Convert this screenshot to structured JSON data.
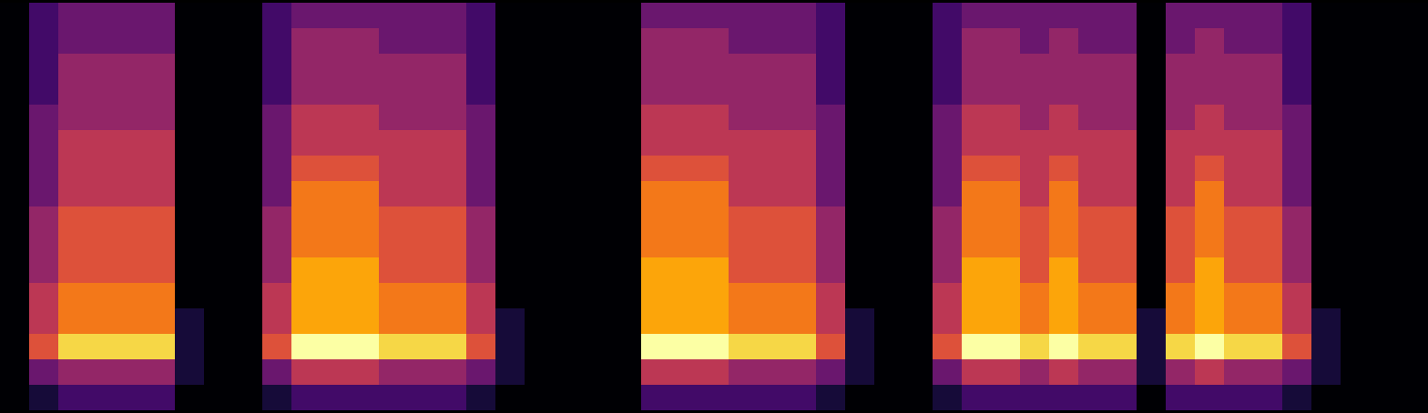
{
  "chart_data": {
    "type": "heatmap",
    "color": "inferno",
    "tick_labels": false,
    "x": [
      0,
      1,
      2,
      3,
      4,
      5,
      6,
      7,
      8,
      9,
      10,
      11,
      12,
      13,
      14,
      15,
      16,
      17,
      18,
      19,
      20,
      21,
      22,
      23,
      24,
      25,
      26,
      27,
      28,
      29,
      30,
      31,
      32,
      33,
      34,
      35,
      36,
      37,
      38,
      39,
      40,
      41,
      42,
      43,
      44,
      45,
      46,
      47,
      48
    ],
    "y": [
      15,
      14,
      13,
      12,
      11,
      10,
      9,
      8,
      7,
      6,
      5,
      4,
      3,
      2,
      1,
      0
    ],
    "z": [
      [
        0,
        0,
        0,
        0,
        0,
        0,
        0,
        0,
        0,
        0,
        0,
        0,
        0,
        0,
        0,
        0
      ],
      [
        2,
        2,
        2,
        2,
        3,
        3,
        3,
        3,
        4,
        4,
        4,
        5,
        5,
        6,
        3,
        1
      ],
      [
        3,
        3,
        4,
        4,
        4,
        5,
        5,
        5,
        6,
        6,
        6,
        7,
        7,
        9,
        4,
        2
      ],
      [
        3,
        3,
        4,
        4,
        4,
        5,
        5,
        5,
        6,
        6,
        6,
        7,
        7,
        9,
        4,
        2
      ],
      [
        3,
        3,
        4,
        4,
        4,
        5,
        5,
        5,
        6,
        6,
        6,
        7,
        7,
        9,
        4,
        2
      ],
      [
        3,
        3,
        4,
        4,
        4,
        5,
        5,
        5,
        6,
        6,
        6,
        7,
        7,
        9,
        4,
        2
      ],
      [
        0,
        0,
        0,
        0,
        0,
        0,
        0,
        0,
        0,
        0,
        0,
        0,
        1,
        1,
        1,
        0
      ],
      [
        0,
        0,
        0,
        0,
        0,
        0,
        0,
        0,
        0,
        0,
        0,
        0,
        0,
        0,
        0,
        0
      ],
      [
        0,
        0,
        0,
        0,
        0,
        0,
        0,
        0,
        0,
        0,
        0,
        0,
        0,
        0,
        0,
        0
      ],
      [
        2,
        2,
        2,
        2,
        3,
        3,
        3,
        3,
        4,
        4,
        4,
        5,
        5,
        6,
        3,
        1
      ],
      [
        3,
        4,
        4,
        4,
        5,
        5,
        6,
        7,
        7,
        7,
        8,
        8,
        8,
        10,
        5,
        2
      ],
      [
        3,
        4,
        4,
        4,
        5,
        5,
        6,
        7,
        7,
        7,
        8,
        8,
        8,
        10,
        5,
        2
      ],
      [
        3,
        4,
        4,
        4,
        5,
        5,
        6,
        7,
        7,
        7,
        8,
        8,
        8,
        10,
        5,
        2
      ],
      [
        3,
        3,
        4,
        4,
        4,
        5,
        5,
        5,
        6,
        6,
        6,
        7,
        7,
        9,
        4,
        2
      ],
      [
        3,
        3,
        4,
        4,
        4,
        5,
        5,
        5,
        6,
        6,
        6,
        7,
        7,
        9,
        4,
        2
      ],
      [
        3,
        3,
        4,
        4,
        4,
        5,
        5,
        5,
        6,
        6,
        6,
        7,
        7,
        9,
        4,
        2
      ],
      [
        2,
        2,
        2,
        2,
        3,
        3,
        3,
        3,
        4,
        4,
        4,
        5,
        5,
        6,
        3,
        1
      ],
      [
        0,
        0,
        0,
        0,
        0,
        0,
        0,
        0,
        0,
        0,
        0,
        0,
        1,
        1,
        1,
        0
      ],
      [
        0,
        0,
        0,
        0,
        0,
        0,
        0,
        0,
        0,
        0,
        0,
        0,
        0,
        0,
        0,
        0
      ],
      [
        0,
        0,
        0,
        0,
        0,
        0,
        0,
        0,
        0,
        0,
        0,
        0,
        0,
        0,
        0,
        0
      ],
      [
        0,
        0,
        0,
        0,
        0,
        0,
        0,
        0,
        0,
        0,
        0,
        0,
        0,
        0,
        0,
        0
      ],
      [
        0,
        0,
        0,
        0,
        0,
        0,
        0,
        0,
        0,
        0,
        0,
        0,
        0,
        0,
        0,
        0
      ],
      [
        3,
        4,
        4,
        4,
        5,
        5,
        6,
        7,
        7,
        7,
        8,
        8,
        8,
        10,
        5,
        2
      ],
      [
        3,
        4,
        4,
        4,
        5,
        5,
        6,
        7,
        7,
        7,
        8,
        8,
        8,
        10,
        5,
        2
      ],
      [
        3,
        4,
        4,
        4,
        5,
        5,
        6,
        7,
        7,
        7,
        8,
        8,
        8,
        10,
        5,
        2
      ],
      [
        3,
        3,
        4,
        4,
        4,
        5,
        5,
        5,
        6,
        6,
        6,
        7,
        7,
        9,
        4,
        2
      ],
      [
        3,
        3,
        4,
        4,
        4,
        5,
        5,
        5,
        6,
        6,
        6,
        7,
        7,
        9,
        4,
        2
      ],
      [
        3,
        3,
        4,
        4,
        4,
        5,
        5,
        5,
        6,
        6,
        6,
        7,
        7,
        9,
        4,
        2
      ],
      [
        2,
        2,
        2,
        2,
        3,
        3,
        3,
        3,
        4,
        4,
        4,
        5,
        5,
        6,
        3,
        1
      ],
      [
        0,
        0,
        0,
        0,
        0,
        0,
        0,
        0,
        0,
        0,
        0,
        0,
        1,
        1,
        1,
        0
      ],
      [
        0,
        0,
        0,
        0,
        0,
        0,
        0,
        0,
        0,
        0,
        0,
        0,
        0,
        0,
        0,
        0
      ],
      [
        0,
        0,
        0,
        0,
        0,
        0,
        0,
        0,
        0,
        0,
        0,
        0,
        0,
        0,
        0,
        0
      ],
      [
        2,
        2,
        2,
        2,
        3,
        3,
        3,
        3,
        4,
        4,
        4,
        5,
        5,
        6,
        3,
        1
      ],
      [
        3,
        4,
        4,
        4,
        5,
        5,
        6,
        7,
        7,
        7,
        8,
        8,
        8,
        10,
        5,
        2
      ],
      [
        3,
        4,
        4,
        4,
        5,
        5,
        6,
        7,
        7,
        7,
        8,
        8,
        8,
        10,
        5,
        2
      ],
      [
        3,
        3,
        4,
        4,
        4,
        5,
        5,
        5,
        6,
        6,
        6,
        7,
        7,
        9,
        4,
        2
      ],
      [
        3,
        4,
        4,
        4,
        5,
        5,
        6,
        7,
        7,
        7,
        8,
        8,
        8,
        10,
        5,
        2
      ],
      [
        3,
        3,
        4,
        4,
        4,
        5,
        5,
        5,
        6,
        6,
        6,
        7,
        7,
        9,
        4,
        2
      ],
      [
        3,
        3,
        4,
        4,
        4,
        5,
        5,
        5,
        6,
        6,
        6,
        7,
        7,
        9,
        4,
        2
      ],
      [
        0,
        0,
        0,
        0,
        0,
        0,
        0,
        0,
        0,
        0,
        0,
        0,
        1,
        1,
        1,
        0
      ],
      [
        3,
        3,
        4,
        4,
        4,
        5,
        5,
        5,
        6,
        6,
        6,
        7,
        7,
        9,
        4,
        2
      ],
      [
        3,
        4,
        4,
        4,
        5,
        5,
        6,
        7,
        7,
        7,
        8,
        8,
        8,
        10,
        5,
        2
      ],
      [
        3,
        3,
        4,
        4,
        4,
        5,
        5,
        5,
        6,
        6,
        6,
        7,
        7,
        9,
        4,
        2
      ],
      [
        3,
        3,
        4,
        4,
        4,
        5,
        5,
        5,
        6,
        6,
        6,
        7,
        7,
        9,
        4,
        2
      ],
      [
        2,
        2,
        2,
        2,
        3,
        3,
        3,
        3,
        4,
        4,
        4,
        5,
        5,
        6,
        3,
        1
      ],
      [
        0,
        0,
        0,
        0,
        0,
        0,
        0,
        0,
        0,
        0,
        0,
        0,
        1,
        1,
        1,
        0
      ],
      [
        0,
        0,
        0,
        0,
        0,
        0,
        0,
        0,
        0,
        0,
        0,
        0,
        0,
        0,
        0,
        0
      ],
      [
        0,
        0,
        0,
        0,
        0,
        0,
        0,
        0,
        0,
        0,
        0,
        0,
        0,
        0,
        0,
        0
      ],
      [
        0,
        0,
        0,
        0,
        0,
        0,
        0,
        0,
        0,
        0,
        0,
        0,
        0,
        0,
        0,
        0
      ]
    ]
  }
}
